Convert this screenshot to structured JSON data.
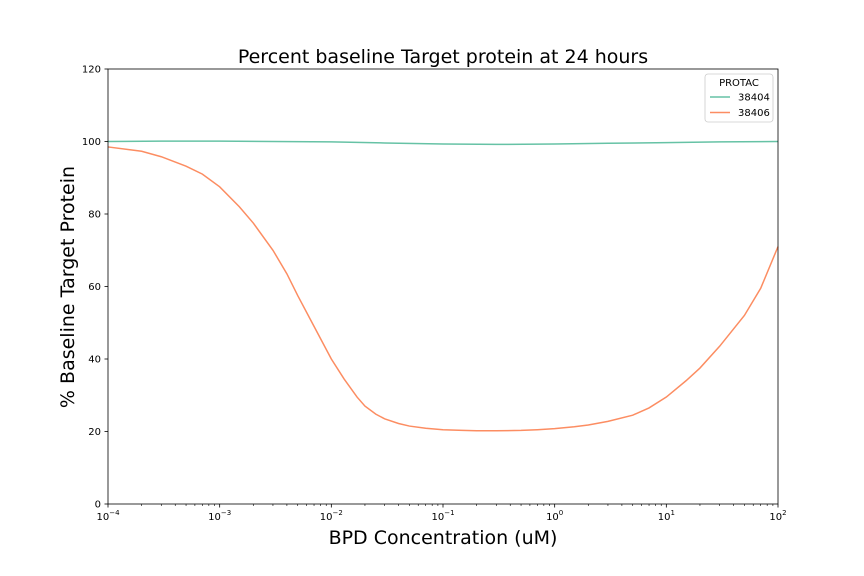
{
  "chart_data": {
    "type": "line",
    "title": "Percent baseline Target protein at 24 hours",
    "xlabel": "BPD Concentration (uM)",
    "ylabel": "% Baseline Target Protein",
    "xscale": "log",
    "xlim": [
      0.0001,
      100
    ],
    "ylim": [
      0,
      120
    ],
    "xticks": [
      {
        "base": "10",
        "exp": "−4",
        "value": 0.0001
      },
      {
        "base": "10",
        "exp": "−3",
        "value": 0.001
      },
      {
        "base": "10",
        "exp": "−2",
        "value": 0.01
      },
      {
        "base": "10",
        "exp": "−1",
        "value": 0.1
      },
      {
        "base": "10",
        "exp": "0",
        "value": 1
      },
      {
        "base": "10",
        "exp": "1",
        "value": 10
      },
      {
        "base": "10",
        "exp": "2",
        "value": 100
      }
    ],
    "yticks": [
      0,
      20,
      40,
      60,
      80,
      100,
      120
    ],
    "grid": false,
    "legend": {
      "title": "PROTAC",
      "placement": "top-right"
    },
    "series": [
      {
        "name": "38404",
        "color": "#66c2a5",
        "x": [
          0.0001,
          0.0003,
          0.001,
          0.003,
          0.01,
          0.03,
          0.1,
          0.3,
          1,
          3,
          10,
          30,
          100
        ],
        "y": [
          100.0,
          100.1,
          100.1,
          100.0,
          99.9,
          99.6,
          99.3,
          99.2,
          99.3,
          99.5,
          99.7,
          99.9,
          100.0
        ]
      },
      {
        "name": "38406",
        "color": "#fc8d62",
        "x": [
          0.0001,
          0.0002,
          0.0003,
          0.0005,
          0.0007,
          0.001,
          0.0015,
          0.002,
          0.003,
          0.004,
          0.005,
          0.007,
          0.01,
          0.013,
          0.017,
          0.02,
          0.025,
          0.03,
          0.04,
          0.05,
          0.07,
          0.1,
          0.15,
          0.2,
          0.3,
          0.5,
          0.7,
          1,
          1.5,
          2,
          3,
          5,
          7,
          10,
          15,
          20,
          30,
          50,
          70,
          100
        ],
        "y": [
          98.5,
          97.3,
          95.8,
          93.2,
          91.0,
          87.5,
          82.0,
          77.5,
          70.0,
          63.5,
          57.5,
          49.0,
          40.0,
          34.5,
          29.5,
          27.0,
          24.8,
          23.5,
          22.2,
          21.5,
          20.9,
          20.5,
          20.3,
          20.2,
          20.2,
          20.3,
          20.5,
          20.8,
          21.3,
          21.8,
          22.8,
          24.5,
          26.5,
          29.5,
          34.0,
          37.5,
          43.5,
          52.0,
          59.5,
          71.0
        ]
      }
    ]
  }
}
